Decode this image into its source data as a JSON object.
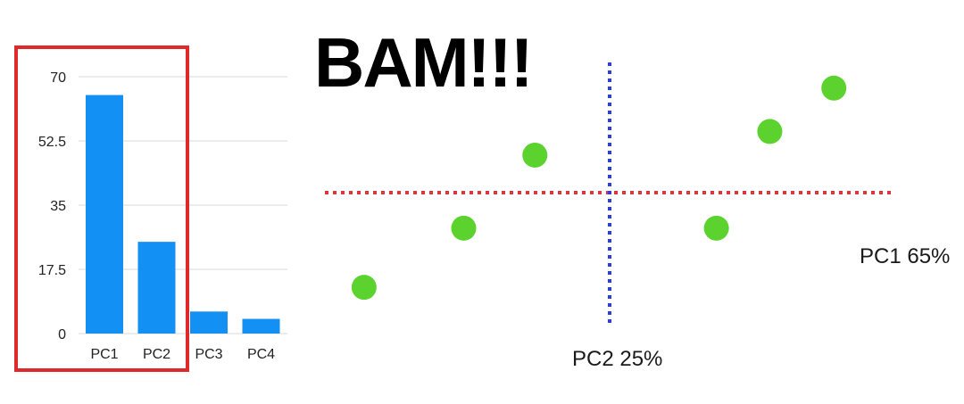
{
  "headline": "BAM!!!",
  "colors": {
    "bar": "#1390f3",
    "highlight_box": "#e0292b",
    "point": "#5cd22e",
    "pc1_axis": "#d63a3a",
    "pc2_axis": "#2b3fe0",
    "gridline": "#d8d8d8"
  },
  "chart_data": [
    {
      "type": "bar",
      "categories": [
        "PC1",
        "PC2",
        "PC3",
        "PC4"
      ],
      "values": [
        65,
        25,
        6,
        4
      ],
      "yticks": [
        "0",
        "17.5",
        "35",
        "52.5",
        "70"
      ],
      "ylim": [
        0,
        70
      ],
      "highlighted_categories": [
        "PC1",
        "PC2"
      ],
      "grid": true
    },
    {
      "type": "scatter",
      "x_axis_label": "PC1 65%",
      "y_axis_label": "PC2 25%",
      "points": [
        {
          "x": -6.9,
          "y": -2.4
        },
        {
          "x": -4.1,
          "y": -0.9
        },
        {
          "x": -2.1,
          "y": 0.95
        },
        {
          "x": 3.0,
          "y": -0.9
        },
        {
          "x": 4.5,
          "y": 1.55
        },
        {
          "x": 6.3,
          "y": 2.65
        }
      ],
      "xlim": [
        -8,
        8
      ],
      "ylim": [
        -3.3,
        3.3
      ]
    }
  ]
}
